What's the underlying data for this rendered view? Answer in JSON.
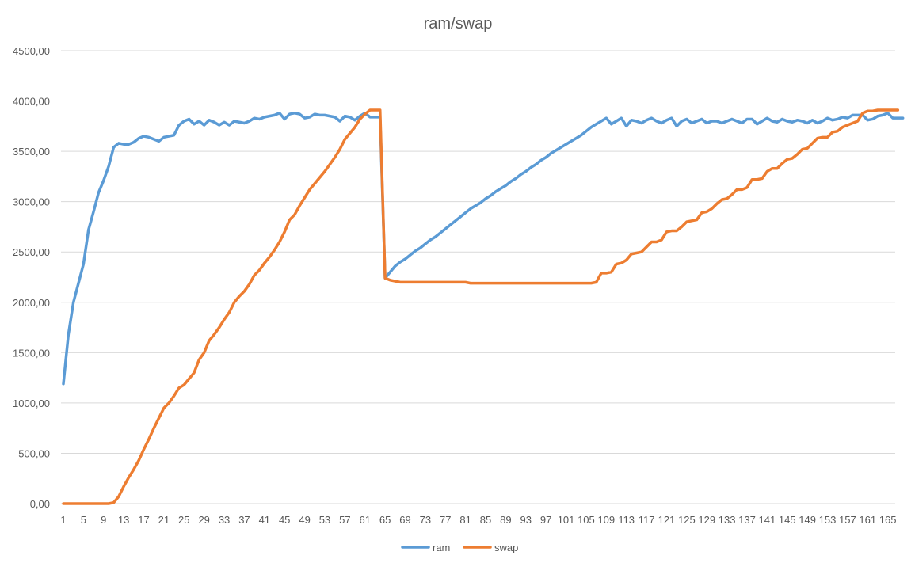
{
  "chart_data": {
    "type": "line",
    "title": "ram/swap",
    "xlabel": "",
    "ylabel": "",
    "ylim": [
      0,
      4500
    ],
    "y_ticks": [
      "0,00",
      "500,00",
      "1000,00",
      "1500,00",
      "2000,00",
      "2500,00",
      "3000,00",
      "3500,00",
      "4000,00",
      "4500,00"
    ],
    "x_tick_labels": [
      "1",
      "5",
      "9",
      "13",
      "17",
      "21",
      "25",
      "29",
      "33",
      "37",
      "41",
      "45",
      "49",
      "53",
      "57",
      "61",
      "65",
      "69",
      "73",
      "77",
      "81",
      "85",
      "89",
      "93",
      "97",
      "101",
      "105",
      "109",
      "113",
      "117",
      "121",
      "125",
      "129",
      "133",
      "137",
      "141",
      "145",
      "149",
      "153",
      "157",
      "161",
      "165"
    ],
    "x_range": [
      1,
      166
    ],
    "grid": true,
    "legend_position": "bottom",
    "series": [
      {
        "name": "ram",
        "color": "#5b9bd5",
        "values": [
          1190,
          1680,
          2000,
          2190,
          2380,
          2720,
          2900,
          3090,
          3210,
          3350,
          3540,
          3580,
          3570,
          3570,
          3590,
          3630,
          3650,
          3640,
          3620,
          3600,
          3640,
          3650,
          3660,
          3760,
          3800,
          3820,
          3770,
          3800,
          3760,
          3810,
          3790,
          3760,
          3790,
          3760,
          3800,
          3790,
          3780,
          3800,
          3830,
          3820,
          3840,
          3850,
          3860,
          3880,
          3820,
          3870,
          3880,
          3870,
          3830,
          3840,
          3870,
          3860,
          3860,
          3850,
          3840,
          3800,
          3850,
          3840,
          3810,
          3850,
          3880,
          3840,
          3840,
          3840,
          2240,
          2300,
          2360,
          2400,
          2430,
          2470,
          2510,
          2540,
          2580,
          2620,
          2650,
          2690,
          2730,
          2770,
          2810,
          2850,
          2890,
          2930,
          2960,
          2990,
          3030,
          3060,
          3100,
          3130,
          3160,
          3200,
          3230,
          3270,
          3300,
          3340,
          3370,
          3410,
          3440,
          3480,
          3510,
          3540,
          3570,
          3600,
          3630,
          3660,
          3700,
          3740,
          3770,
          3800,
          3830,
          3770,
          3800,
          3830,
          3750,
          3810,
          3800,
          3780,
          3810,
          3830,
          3800,
          3780,
          3810,
          3830,
          3750,
          3800,
          3820,
          3780,
          3800,
          3820,
          3780,
          3800,
          3800,
          3780,
          3800,
          3820,
          3800,
          3780,
          3820,
          3820,
          3770,
          3800,
          3830,
          3800,
          3790,
          3820,
          3800,
          3790,
          3810,
          3800,
          3780,
          3810,
          3780,
          3800,
          3830,
          3810,
          3820,
          3840,
          3830,
          3860,
          3860,
          3860,
          3810,
          3820,
          3850,
          3860,
          3880,
          3830,
          3830,
          3830
        ],
        "values_count_note": ""
      },
      {
        "name": "swap",
        "color": "#ed7d31",
        "values": [
          0,
          0,
          0,
          0,
          0,
          0,
          0,
          0,
          0,
          0,
          10,
          70,
          170,
          260,
          340,
          430,
          540,
          640,
          750,
          850,
          950,
          1000,
          1070,
          1150,
          1180,
          1240,
          1300,
          1430,
          1500,
          1620,
          1680,
          1750,
          1830,
          1900,
          2000,
          2060,
          2110,
          2180,
          2270,
          2320,
          2390,
          2450,
          2520,
          2600,
          2700,
          2820,
          2870,
          2960,
          3040,
          3120,
          3180,
          3240,
          3300,
          3370,
          3440,
          3520,
          3620,
          3680,
          3740,
          3820,
          3870,
          3910,
          3910,
          3910,
          2240,
          2220,
          2210,
          2200,
          2200,
          2200,
          2200,
          2200,
          2200,
          2200,
          2200,
          2200,
          2200,
          2200,
          2200,
          2200,
          2200,
          2190,
          2190,
          2190,
          2190,
          2190,
          2190,
          2190,
          2190,
          2190,
          2190,
          2190,
          2190,
          2190,
          2190,
          2190,
          2190,
          2190,
          2190,
          2190,
          2190,
          2190,
          2190,
          2190,
          2190,
          2190,
          2200,
          2290,
          2290,
          2300,
          2380,
          2390,
          2420,
          2480,
          2490,
          2500,
          2550,
          2600,
          2600,
          2620,
          2700,
          2710,
          2710,
          2750,
          2800,
          2810,
          2820,
          2890,
          2900,
          2930,
          2980,
          3020,
          3030,
          3070,
          3120,
          3120,
          3140,
          3220,
          3220,
          3230,
          3300,
          3330,
          3330,
          3380,
          3420,
          3430,
          3470,
          3520,
          3530,
          3580,
          3630,
          3640,
          3640,
          3690,
          3700,
          3740,
          3760,
          3780,
          3800,
          3880,
          3900,
          3900,
          3910,
          3910,
          3910,
          3910,
          3910
        ]
      }
    ]
  }
}
